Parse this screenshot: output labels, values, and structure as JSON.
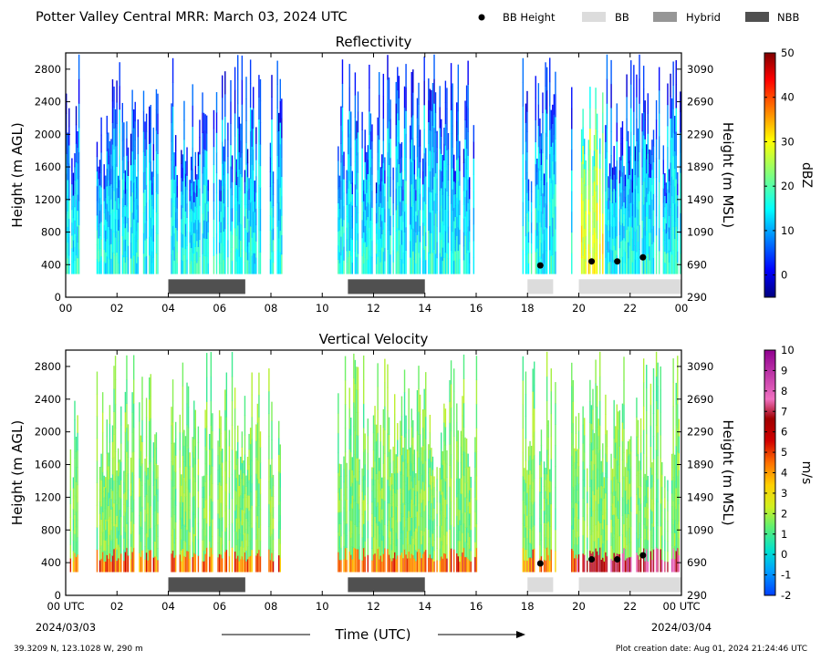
{
  "header": {
    "title": "Potter Valley Central MRR:  March 03, 2024 UTC",
    "legend": [
      {
        "label": "BB Height",
        "kind": "dot",
        "color": "#000000"
      },
      {
        "label": "BB",
        "kind": "swatch",
        "color": "#dcdcdc"
      },
      {
        "label": "Hybrid",
        "kind": "swatch",
        "color": "#969696"
      },
      {
        "label": "NBB",
        "kind": "swatch",
        "color": "#505050"
      }
    ]
  },
  "footer": {
    "location": "39.3209 N, 123.1028 W, 290 m",
    "created": "Plot creation date: Aug 01, 2024 21:24:46 UTC",
    "xlabel": "Time (UTC)"
  },
  "chart_data": [
    {
      "type": "heatmap",
      "title": "Reflectivity",
      "ylabel": "Height (m AGL)",
      "ylabel_right": "Height (m MSL)",
      "ylim": [
        0,
        3000
      ],
      "xlim": [
        0,
        24
      ],
      "yticks": [
        0,
        400,
        800,
        1200,
        1600,
        2000,
        2400,
        2800
      ],
      "ytick_labels_right": [
        "290",
        "690",
        "1090",
        "1490",
        "1890",
        "2290",
        "2690",
        "3090"
      ],
      "xtick_labels": [
        "00",
        "02",
        "04",
        "06",
        "08",
        "10",
        "12",
        "14",
        "16",
        "18",
        "20",
        "22",
        "00"
      ],
      "colorbar": {
        "label": "dBZ",
        "range": [
          -5,
          50
        ],
        "ticks": [
          0,
          10,
          20,
          30,
          40,
          50
        ],
        "colormap": "jet"
      },
      "precip_periods": [
        [
          0.0,
          0.5
        ],
        [
          1.2,
          3.6
        ],
        [
          4.1,
          7.6
        ],
        [
          7.9,
          8.4
        ],
        [
          10.6,
          16.0
        ],
        [
          17.8,
          19.1
        ],
        [
          19.7,
          24.0
        ]
      ],
      "classification": [
        {
          "type": "NBB",
          "start": 4.0,
          "end": 7.0
        },
        {
          "type": "NBB",
          "start": 11.0,
          "end": 14.0
        },
        {
          "type": "BB",
          "start": 18.0,
          "end": 19.0
        },
        {
          "type": "BB",
          "start": 20.0,
          "end": 24.0
        }
      ],
      "bb_heights": [
        {
          "time": 18.5,
          "height": 390
        },
        {
          "time": 20.5,
          "height": 440
        },
        {
          "time": 21.5,
          "height": 440
        },
        {
          "time": 22.5,
          "height": 490
        }
      ]
    },
    {
      "type": "heatmap",
      "title": "Vertical Velocity",
      "ylabel": "Height (m AGL)",
      "ylabel_right": "Height (m MSL)",
      "ylim": [
        0,
        3000
      ],
      "xlim": [
        0,
        24
      ],
      "yticks": [
        0,
        400,
        800,
        1200,
        1600,
        2000,
        2400,
        2800
      ],
      "ytick_labels_right": [
        "290",
        "690",
        "1090",
        "1490",
        "1890",
        "2290",
        "2690",
        "3090"
      ],
      "xtick_labels": [
        "00 UTC",
        "02",
        "04",
        "06",
        "08",
        "10",
        "12",
        "14",
        "16",
        "18",
        "20",
        "22",
        "00 UTC"
      ],
      "date_start": "2024/03/03",
      "date_end": "2024/03/04",
      "colorbar": {
        "label": "m/s",
        "range": [
          -2,
          10
        ],
        "ticks": [
          -2,
          -1,
          0,
          1,
          2,
          3,
          4,
          5,
          6,
          7,
          8,
          9,
          10
        ],
        "colormap": "velocity"
      },
      "precip_periods": [
        [
          0.0,
          0.5
        ],
        [
          1.2,
          3.6
        ],
        [
          4.1,
          7.6
        ],
        [
          7.9,
          8.4
        ],
        [
          10.6,
          16.0
        ],
        [
          17.8,
          19.1
        ],
        [
          19.7,
          24.0
        ]
      ],
      "classification": [
        {
          "type": "NBB",
          "start": 4.0,
          "end": 7.0
        },
        {
          "type": "NBB",
          "start": 11.0,
          "end": 14.0
        },
        {
          "type": "BB",
          "start": 18.0,
          "end": 19.0
        },
        {
          "type": "BB",
          "start": 20.0,
          "end": 24.0
        }
      ],
      "bb_heights": [
        {
          "time": 18.5,
          "height": 390
        },
        {
          "time": 20.5,
          "height": 440
        },
        {
          "time": 21.5,
          "height": 440
        },
        {
          "time": 22.5,
          "height": 490
        }
      ]
    }
  ]
}
